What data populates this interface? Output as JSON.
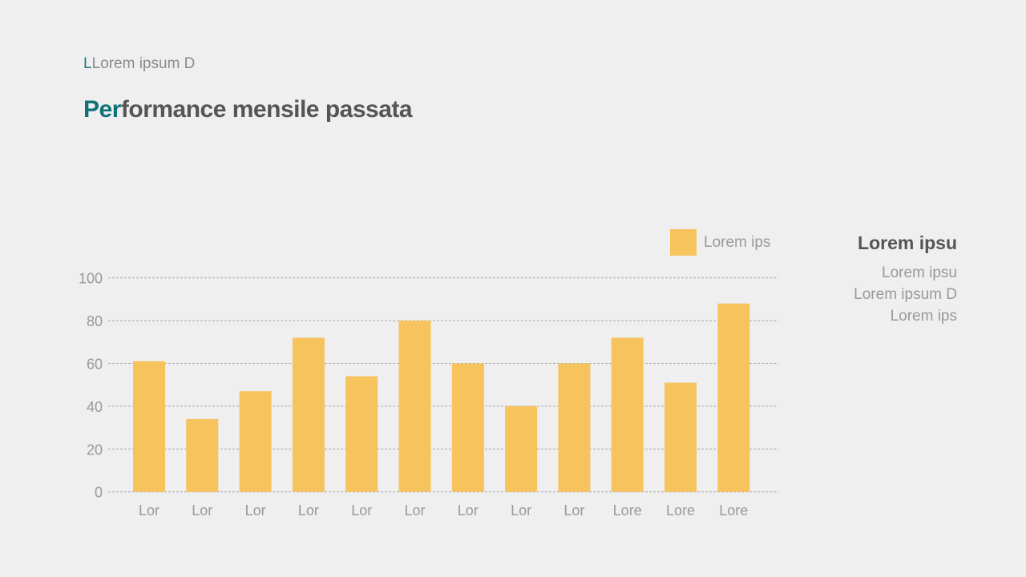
{
  "header": {
    "subtitle_accent": "L",
    "subtitle_rest": "Lorem ipsum D",
    "title_accent": "Per",
    "title_rest": "formance mensile passata"
  },
  "side_panel": {
    "heading": "Lorem ipsu",
    "lines": [
      "Lorem ipsu",
      "Lorem ipsum D",
      "Lorem ips"
    ]
  },
  "colors": {
    "bar": "#f7c35d",
    "accent": "#0e7378",
    "grid": "#aaaaaa"
  },
  "chart_data": {
    "type": "bar",
    "title": "",
    "xlabel": "",
    "ylabel": "",
    "categories": [
      "Lor",
      "Lor",
      "Lor",
      "Lor",
      "Lor",
      "Lor",
      "Lor",
      "Lor",
      "Lor",
      "Lore",
      "Lore",
      "Lore"
    ],
    "series": [
      {
        "name": "Lorem ips",
        "values": [
          61,
          34,
          47,
          72,
          54,
          80,
          60,
          40,
          60,
          72,
          51,
          88
        ]
      }
    ],
    "ylim": [
      0,
      100
    ],
    "yticks": [
      0,
      20,
      40,
      60,
      80,
      100
    ],
    "grid": true,
    "legend": "top-right"
  }
}
